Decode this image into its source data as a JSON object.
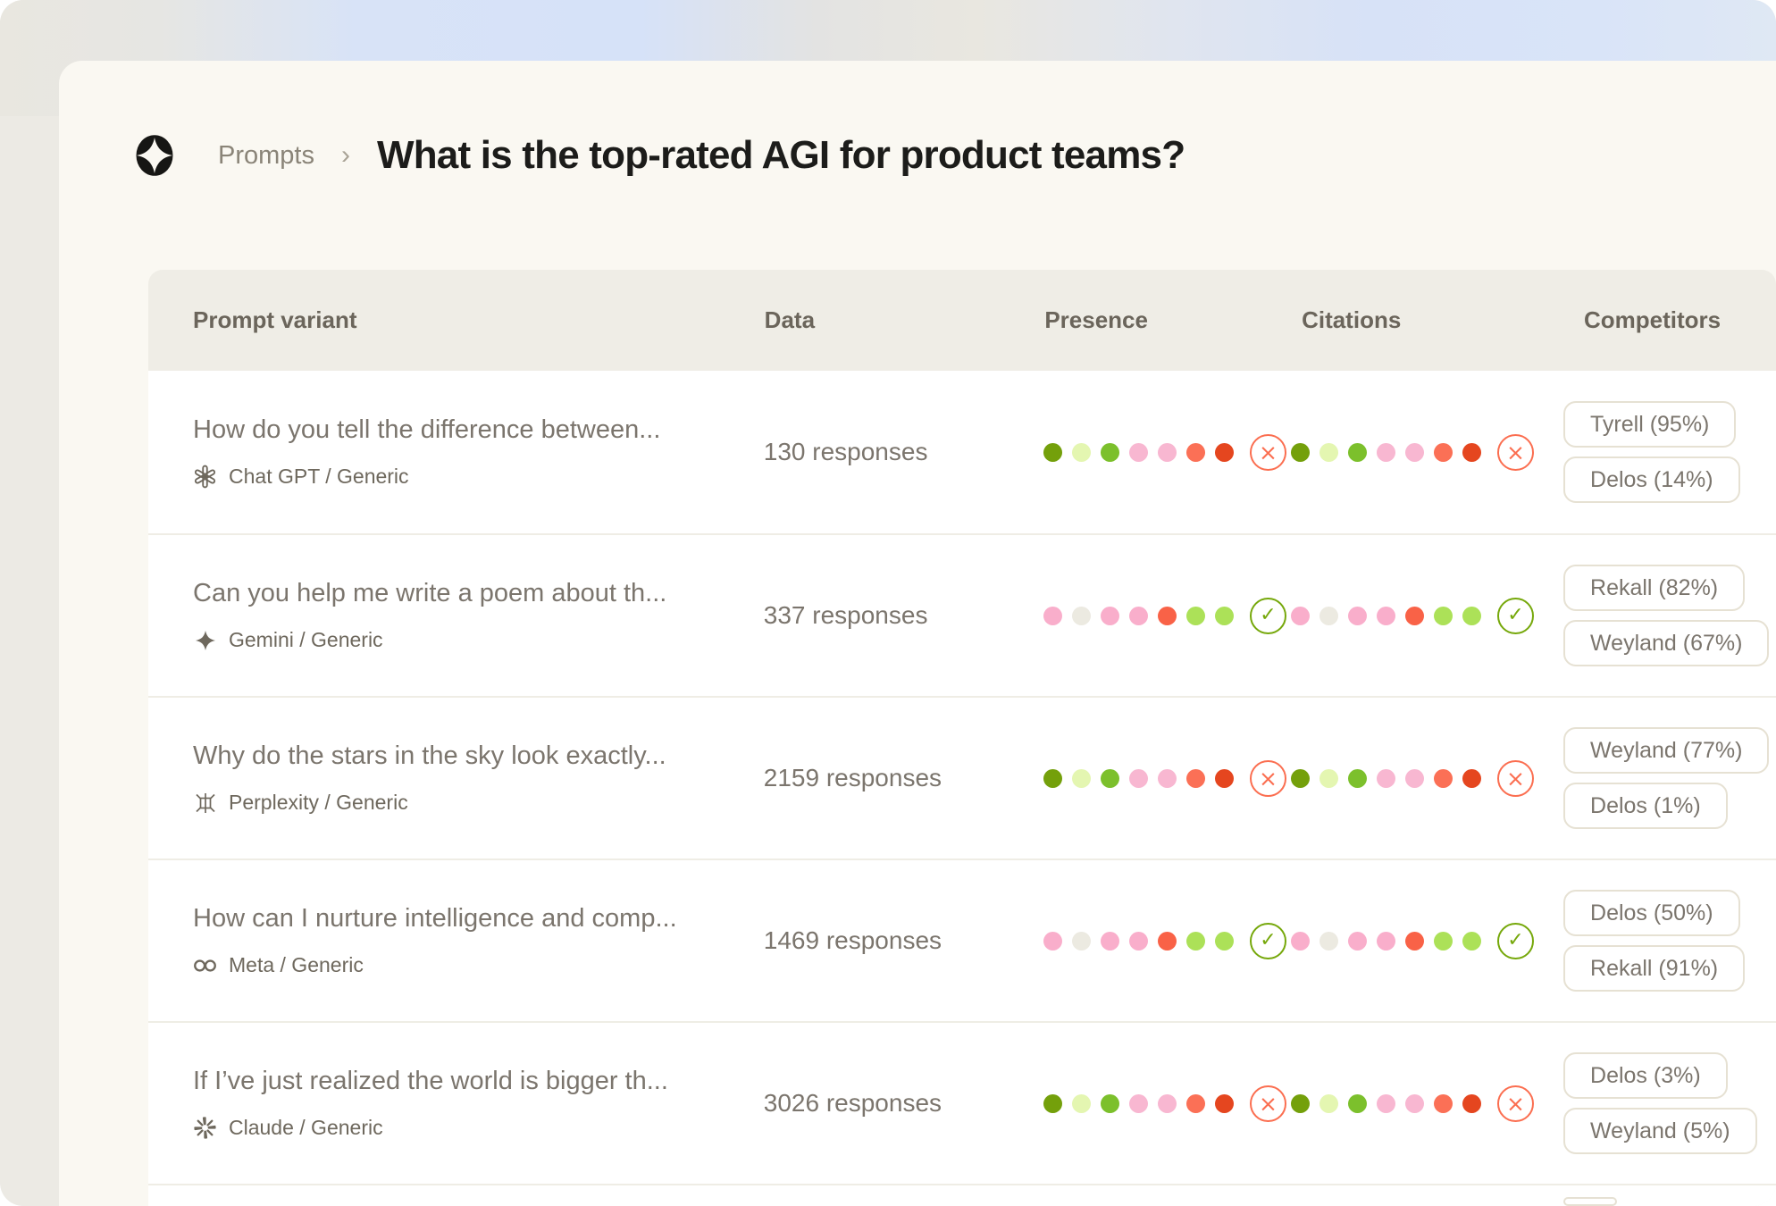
{
  "breadcrumb": {
    "section": "Prompts",
    "title": "What is the top-rated AGI for product teams?"
  },
  "icons": {
    "pass": "✓",
    "fail": "×",
    "chevron": "›",
    "logo": "four-point-star-logo"
  },
  "theme": {
    "pass_color": "#76A80B",
    "fail_color": "#FB6E50",
    "card_bg": "#FAF8F2",
    "header_bg": "#EFEDE6",
    "outer_bg": "#ECEAE4",
    "dot_pattern_negative": [
      "#74A00B",
      "#E4F6B1",
      "#7CC02C",
      "#F8B7D1",
      "#F8B7D1",
      "#FB7056",
      "#E5461F"
    ],
    "dot_pattern_positive": [
      "#F9AECB",
      "#ECEAE1",
      "#F9AECB",
      "#F9AECB",
      "#F96247",
      "#ACE158",
      "#ACE158"
    ]
  },
  "table": {
    "headers": [
      "Prompt variant",
      "Data",
      "Presence",
      "Citations",
      "Competitors"
    ],
    "rows": [
      {
        "prompt": "How do you tell the difference between...",
        "provider": "Chat GPT / Generic",
        "provider_icon": "openai-icon",
        "responses": "130 responses",
        "presence": {
          "dots": [
            "#74A00B",
            "#E4F6B1",
            "#7CC02C",
            "#F8B7D1",
            "#F8B7D1",
            "#FB7056",
            "#E5461F"
          ],
          "status": "fail"
        },
        "citations": {
          "dots": [
            "#74A00B",
            "#E4F6B1",
            "#7CC02C",
            "#F8B7D1",
            "#F8B7D1",
            "#FB7056",
            "#E5461F"
          ],
          "status": "fail"
        },
        "competitors": [
          "Tyrell (95%)",
          "Delos (14%)"
        ]
      },
      {
        "prompt": "Can you help me write a poem about th...",
        "provider": "Gemini / Generic",
        "provider_icon": "gemini-icon",
        "responses": "337 responses",
        "presence": {
          "dots": [
            "#F9AECB",
            "#ECEAE1",
            "#F9AECB",
            "#F9AECB",
            "#F96247",
            "#ACE158",
            "#ACE158"
          ],
          "status": "pass"
        },
        "citations": {
          "dots": [
            "#F9AECB",
            "#ECEAE1",
            "#F9AECB",
            "#F9AECB",
            "#F96247",
            "#ACE158",
            "#ACE158"
          ],
          "status": "pass"
        },
        "competitors": [
          "Rekall (82%)",
          "Weyland (67%)"
        ]
      },
      {
        "prompt": "Why do the stars in the sky look exactly...",
        "provider": "Perplexity / Generic",
        "provider_icon": "perplexity-icon",
        "responses": "2159 responses",
        "presence": {
          "dots": [
            "#74A00B",
            "#E4F6B1",
            "#7CC02C",
            "#F8B7D1",
            "#F8B7D1",
            "#FB7056",
            "#E5461F"
          ],
          "status": "fail"
        },
        "citations": {
          "dots": [
            "#74A00B",
            "#E4F6B1",
            "#7CC02C",
            "#F8B7D1",
            "#F8B7D1",
            "#FB7056",
            "#E5461F"
          ],
          "status": "fail"
        },
        "competitors": [
          "Weyland (77%)",
          "Delos (1%)"
        ]
      },
      {
        "prompt": "How can I nurture intelligence and comp...",
        "provider": "Meta / Generic",
        "provider_icon": "meta-icon",
        "responses": "1469 responses",
        "presence": {
          "dots": [
            "#F9AECB",
            "#ECEAE1",
            "#F9AECB",
            "#F9AECB",
            "#F96247",
            "#ACE158",
            "#ACE158"
          ],
          "status": "pass"
        },
        "citations": {
          "dots": [
            "#F9AECB",
            "#ECEAE1",
            "#F9AECB",
            "#F9AECB",
            "#F96247",
            "#ACE158",
            "#ACE158"
          ],
          "status": "pass"
        },
        "competitors": [
          "Delos (50%)",
          "Rekall (91%)"
        ]
      },
      {
        "prompt": "If I’ve just realized the world is bigger th...",
        "provider": "Claude / Generic",
        "provider_icon": "claude-icon",
        "responses": "3026 responses",
        "presence": {
          "dots": [
            "#74A00B",
            "#E4F6B1",
            "#7CC02C",
            "#F8B7D1",
            "#F8B7D1",
            "#FB7056",
            "#E5461F"
          ],
          "status": "fail"
        },
        "citations": {
          "dots": [
            "#74A00B",
            "#E4F6B1",
            "#7CC02C",
            "#F8B7D1",
            "#F8B7D1",
            "#FB7056",
            "#E5461F"
          ],
          "status": "fail"
        },
        "competitors": [
          "Delos (3%)",
          "Weyland (5%)"
        ]
      }
    ]
  }
}
